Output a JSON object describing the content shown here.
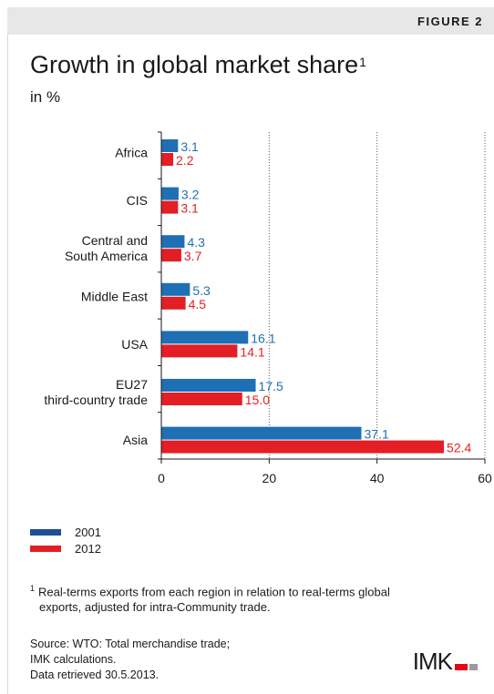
{
  "header": {
    "figure_label": "FIGURE 2"
  },
  "title": "Growth in global market share",
  "title_superscript": "1",
  "subtitle": "in %",
  "chart_data": {
    "type": "bar",
    "orientation": "horizontal",
    "categories": [
      [
        "Africa"
      ],
      [
        "CIS"
      ],
      [
        "Central and",
        "South America"
      ],
      [
        "Middle East"
      ],
      [
        "USA"
      ],
      [
        "EU27",
        "third-country trade"
      ],
      [
        "Asia"
      ]
    ],
    "series": [
      {
        "name": "2001",
        "color": "#1f6fb5",
        "values": [
          3.1,
          3.2,
          4.3,
          5.3,
          16.1,
          17.5,
          37.1
        ]
      },
      {
        "name": "2012",
        "color": "#e31e24",
        "values": [
          2.2,
          3.1,
          3.7,
          4.5,
          14.1,
          15.0,
          52.4
        ]
      }
    ],
    "value_labels": [
      [
        "3.1",
        "3.2",
        "4.3",
        "5.3",
        "16.1",
        "17.5",
        "37.1"
      ],
      [
        "2.2",
        "3.1",
        "3.7",
        "4.5",
        "14.1",
        "15.0",
        "52.4"
      ]
    ],
    "xlim": [
      0,
      60
    ],
    "xticks": [
      "0",
      "20",
      "40",
      "60"
    ],
    "xtick_values": [
      0,
      20,
      40,
      60
    ],
    "gridlines": "vertical dotted at 20, 40, 60"
  },
  "legend": [
    {
      "label": "2001",
      "color": "#1f4e9a"
    },
    {
      "label": "2012",
      "color": "#e31e24"
    }
  ],
  "footnote": {
    "marker": "1",
    "line1": "Real-terms exports from each region in relation to real-terms global",
    "line2": "exports, adjusted for intra-Community trade."
  },
  "source": {
    "line1": "Source: WTO: Total merchandise trade;",
    "line2": "IMK calculations.",
    "line3": "Data retrieved 30.5.2013."
  },
  "logo": {
    "text": "IMK"
  }
}
